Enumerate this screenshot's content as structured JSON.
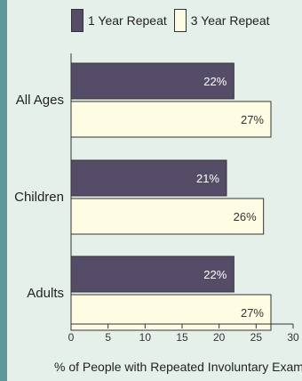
{
  "chart_data": {
    "type": "bar",
    "orientation": "horizontal",
    "categories": [
      "All Ages",
      "Children",
      "Adults"
    ],
    "series": [
      {
        "name": "1 Year Repeat",
        "values": [
          22,
          21,
          22
        ],
        "labels": [
          "22%",
          "21%",
          "22%"
        ],
        "color": "#554d68",
        "label_color": "#ffffff"
      },
      {
        "name": "3 Year Repeat",
        "values": [
          27,
          26,
          27
        ],
        "labels": [
          "27%",
          "26%",
          "27%"
        ],
        "color": "#fefde3",
        "label_color": "#333333"
      }
    ],
    "xlim": [
      0,
      30
    ],
    "xticks": [
      0,
      5,
      10,
      15,
      20,
      25,
      30
    ],
    "xlabel": "% of People with Repeated Involuntary Exams",
    "ylabel": "",
    "legend_position": "top",
    "grid": false
  }
}
